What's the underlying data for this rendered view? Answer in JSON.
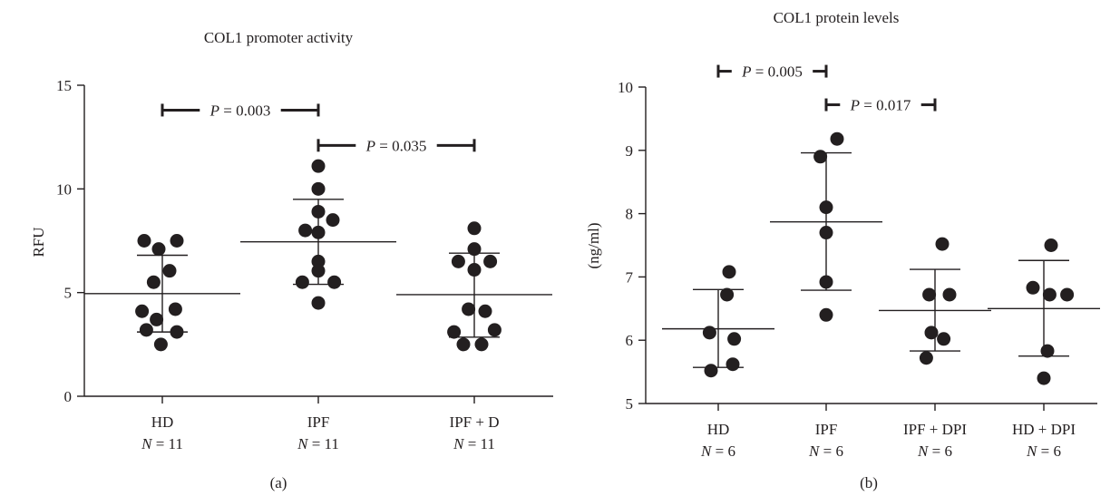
{
  "chart_data": [
    {
      "type": "scatter",
      "title": "COL1 promoter activity",
      "ylabel": "RFU",
      "panel_label": "(a)",
      "ylim": [
        0,
        15
      ],
      "yticks": [
        "0",
        "5",
        "10",
        "15"
      ],
      "categories": [
        {
          "name": "HD",
          "n": "N = 11",
          "mean": 4.95,
          "sd_low": 3.1,
          "sd_high": 6.8,
          "points": [
            [
              -0.25,
              7.5
            ],
            [
              0.2,
              7.5
            ],
            [
              -0.05,
              7.1
            ],
            [
              0.1,
              6.05
            ],
            [
              -0.12,
              5.5
            ],
            [
              0.18,
              4.2
            ],
            [
              -0.28,
              4.1
            ],
            [
              -0.08,
              3.7
            ],
            [
              -0.22,
              3.2
            ],
            [
              0.2,
              3.1
            ],
            [
              -0.02,
              2.5
            ]
          ]
        },
        {
          "name": "IPF",
          "n": "N = 11",
          "mean": 7.45,
          "sd_low": 5.4,
          "sd_high": 9.5,
          "points": [
            [
              0.0,
              11.1
            ],
            [
              0.0,
              10.0
            ],
            [
              0.0,
              8.9
            ],
            [
              0.2,
              8.5
            ],
            [
              -0.18,
              8.0
            ],
            [
              0.0,
              7.9
            ],
            [
              0.0,
              6.5
            ],
            [
              -0.22,
              5.5
            ],
            [
              0.22,
              5.5
            ],
            [
              0.0,
              4.5
            ],
            [
              0.0,
              6.05
            ]
          ]
        },
        {
          "name": "IPF + D",
          "n": "N = 11",
          "mean": 4.9,
          "sd_low": 2.85,
          "sd_high": 6.9,
          "points": [
            [
              0.0,
              8.1
            ],
            [
              0.0,
              7.1
            ],
            [
              -0.22,
              6.5
            ],
            [
              0.22,
              6.5
            ],
            [
              0.0,
              6.1
            ],
            [
              -0.08,
              4.2
            ],
            [
              0.15,
              4.1
            ],
            [
              -0.28,
              3.1
            ],
            [
              0.28,
              3.2
            ],
            [
              -0.15,
              2.5
            ],
            [
              0.1,
              2.5
            ]
          ]
        }
      ],
      "annotations": [
        {
          "text": "P = 0.003",
          "from": 0,
          "to": 1,
          "y": 13.8
        },
        {
          "text": "P = 0.035",
          "from": 1,
          "to": 2,
          "y": 12.1
        }
      ]
    },
    {
      "type": "scatter",
      "title": "COL1 protein levels",
      "ylabel": "(ng/ml)",
      "panel_label": "(b)",
      "ylim": [
        5,
        10
      ],
      "yticks": [
        "5",
        "6",
        "7",
        "8",
        "9",
        "10"
      ],
      "categories": [
        {
          "name": "HD",
          "n": "N = 6",
          "mean": 6.18,
          "sd_low": 5.57,
          "sd_high": 6.8,
          "points": [
            [
              0.15,
              7.08
            ],
            [
              0.12,
              6.72
            ],
            [
              -0.12,
              6.12
            ],
            [
              0.22,
              6.02
            ],
            [
              0.2,
              5.62
            ],
            [
              -0.1,
              5.52
            ]
          ]
        },
        {
          "name": "IPF",
          "n": "N = 6",
          "mean": 7.87,
          "sd_low": 6.79,
          "sd_high": 8.96,
          "points": [
            [
              0.15,
              9.18
            ],
            [
              -0.08,
              8.9
            ],
            [
              0.0,
              8.1
            ],
            [
              0.0,
              7.7
            ],
            [
              0.0,
              6.92
            ],
            [
              0.0,
              6.4
            ]
          ]
        },
        {
          "name": "IPF + DPI",
          "n": "N = 6",
          "mean": 6.47,
          "sd_low": 5.83,
          "sd_high": 7.12,
          "points": [
            [
              0.1,
              7.52
            ],
            [
              -0.08,
              6.72
            ],
            [
              0.2,
              6.72
            ],
            [
              -0.05,
              6.12
            ],
            [
              0.12,
              6.02
            ],
            [
              -0.12,
              5.72
            ]
          ]
        },
        {
          "name": "HD + DPI",
          "n": "N = 6",
          "mean": 6.5,
          "sd_low": 5.75,
          "sd_high": 7.26,
          "points": [
            [
              0.1,
              7.5
            ],
            [
              -0.15,
              6.83
            ],
            [
              0.08,
              6.72
            ],
            [
              0.32,
              6.72
            ],
            [
              0.05,
              5.83
            ],
            [
              0.0,
              5.4
            ]
          ]
        }
      ],
      "annotations": [
        {
          "text": "P = 0.005",
          "from": 0,
          "to": 1,
          "y": 10.25
        },
        {
          "text": "P = 0.017",
          "from": 1,
          "to": 2,
          "y": 9.72
        }
      ]
    }
  ]
}
